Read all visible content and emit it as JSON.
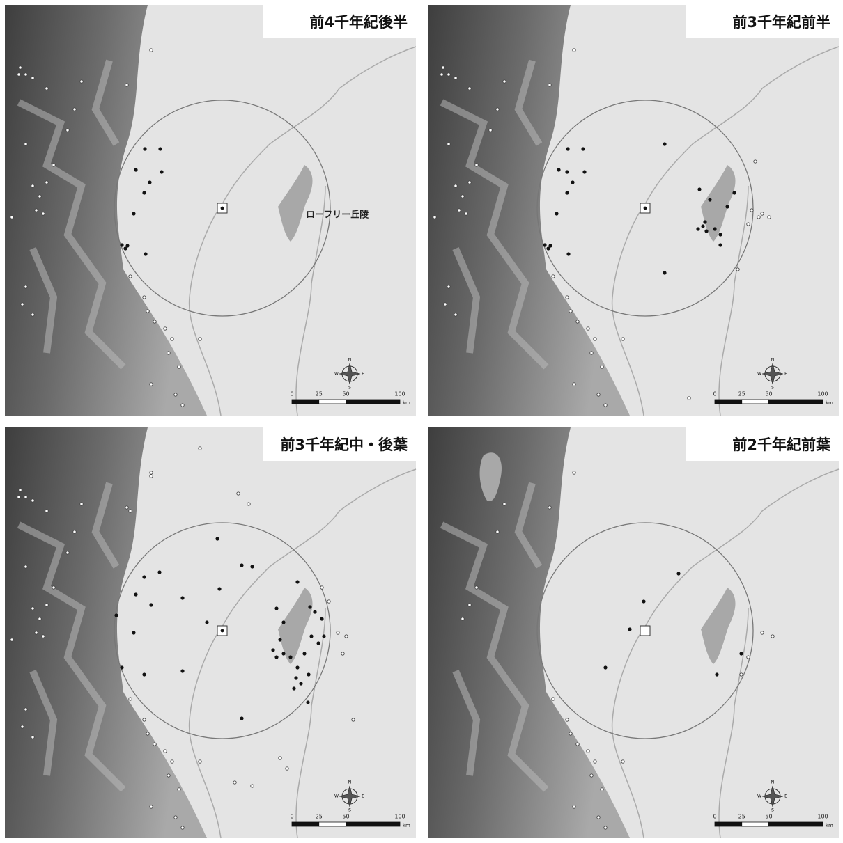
{
  "panels": [
    {
      "title": "前4千年紀後半"
    },
    {
      "title": "前3千年紀前半"
    },
    {
      "title": "前3千年紀中・後葉"
    },
    {
      "title": "前2千年紀前葉"
    }
  ],
  "hill_label": "ローフリー丘陵",
  "scale": {
    "ticks": [
      0,
      25,
      50,
      100
    ],
    "unit": "km"
  },
  "compass": {
    "n": "N",
    "s": "S",
    "e": "E",
    "w": "W"
  }
}
